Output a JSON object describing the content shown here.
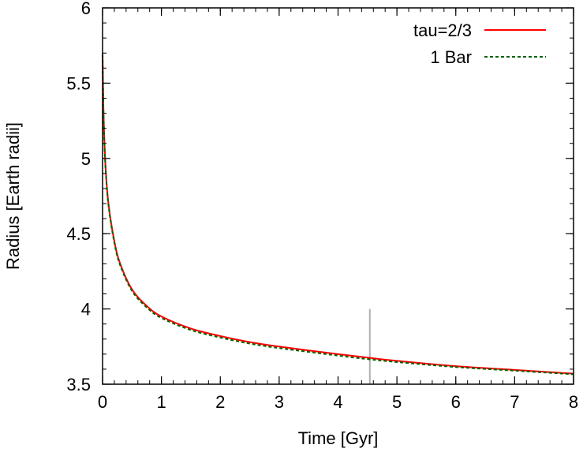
{
  "chart_data": {
    "type": "line",
    "title": "",
    "xlabel": "Time [Gyr]",
    "ylabel": "Radius [Earth radii]",
    "xlim": [
      0,
      8
    ],
    "ylim": [
      3.5,
      6
    ],
    "xticks": [
      0,
      1,
      2,
      3,
      4,
      5,
      6,
      7,
      8
    ],
    "xtick_labels": [
      "0",
      "1",
      "2",
      "3",
      "4",
      "5",
      "6",
      "7",
      "8"
    ],
    "yticks": [
      3.5,
      4,
      4.5,
      5,
      5.5,
      6
    ],
    "ytick_labels": [
      "3.5",
      "4",
      "4.5",
      "5",
      "5.5",
      "6"
    ],
    "grid": false,
    "legend_position": "top-right",
    "series": [
      {
        "name": "tau=2/3",
        "color": "#ff0000",
        "style": "solid",
        "x": [
          0.0,
          0.01,
          0.02,
          0.05,
          0.1,
          0.2,
          0.3,
          0.5,
          0.75,
          1.0,
          1.5,
          2.0,
          2.5,
          3.0,
          4.0,
          4.54,
          5.0,
          6.0,
          7.0,
          8.0
        ],
        "y": [
          5.7,
          5.45,
          5.25,
          4.95,
          4.7,
          4.45,
          4.3,
          4.13,
          4.02,
          3.95,
          3.87,
          3.82,
          3.78,
          3.75,
          3.7,
          3.675,
          3.655,
          3.62,
          3.595,
          3.57
        ]
      },
      {
        "name": "1 Bar",
        "color": "#006400",
        "style": "dashed",
        "x": [
          0.0,
          0.01,
          0.02,
          0.05,
          0.1,
          0.2,
          0.3,
          0.5,
          0.75,
          1.0,
          1.5,
          2.0,
          2.5,
          3.0,
          4.0,
          4.54,
          5.0,
          6.0,
          7.0,
          8.0
        ],
        "y": [
          5.69,
          5.44,
          5.24,
          4.94,
          4.69,
          4.44,
          4.29,
          4.12,
          4.01,
          3.94,
          3.86,
          3.81,
          3.77,
          3.74,
          3.69,
          3.665,
          3.647,
          3.614,
          3.59,
          3.566
        ]
      }
    ],
    "annotations": [
      {
        "type": "vline",
        "x": 4.54,
        "y_range": [
          3.5,
          4.0
        ],
        "color": "#b0b0b0"
      }
    ]
  }
}
